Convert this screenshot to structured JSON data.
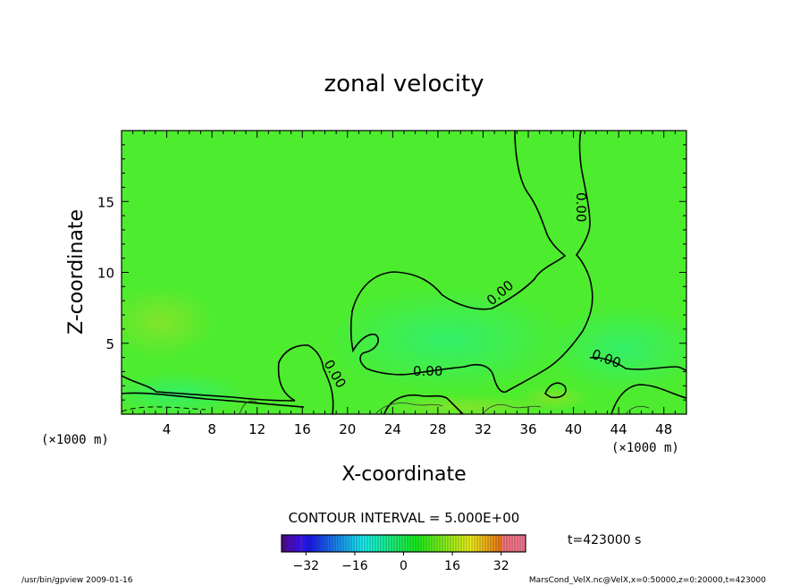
{
  "chart_data": {
    "type": "heatmap",
    "title": "zonal velocity",
    "xlabel": "X-coordinate",
    "ylabel": "Z-coordinate",
    "x_units_left": "(×1000 m)",
    "x_units_right": "(×1000 m)",
    "xlim": [
      0,
      50
    ],
    "ylim": [
      0,
      20
    ],
    "x_ticks": [
      4,
      8,
      12,
      16,
      20,
      24,
      28,
      32,
      36,
      40,
      44,
      48
    ],
    "y_ticks": [
      5,
      10,
      15
    ],
    "contour_interval_text": "CONTOUR INTERVAL = 5.000E+00",
    "contour_label": "0.00",
    "colorbar": {
      "min": -40,
      "max": 40,
      "ticks": [
        -32,
        -16,
        0,
        16,
        32
      ]
    },
    "time_label": "t=423000 s",
    "footer_left": "/usr/bin/gpview 2009-01-16",
    "footer_right": "MarsCond_VelX.nc@VelX,x=0:50000,z=0:20000,t=423000",
    "colors": {
      "background_field": "#4cee2c",
      "dashed_contour": "#000000"
    }
  }
}
